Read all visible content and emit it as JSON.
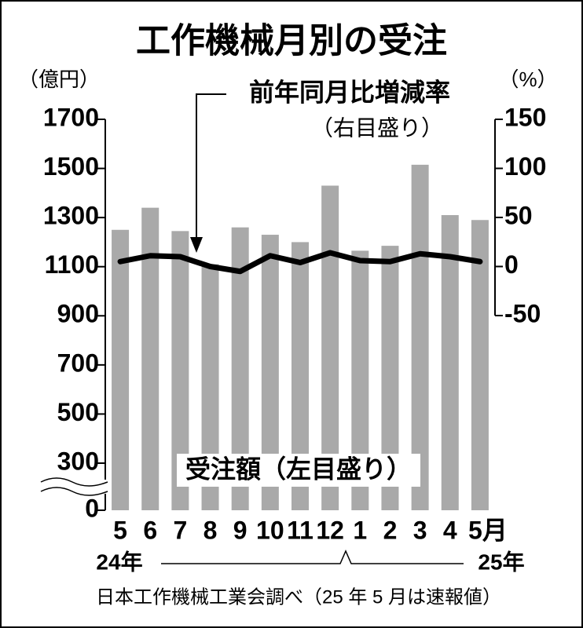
{
  "chart_data": {
    "type": "bar",
    "title": "工作機械月別の受注",
    "y_unit": "（億円）",
    "y2_unit": "（%）",
    "categories": [
      "5",
      "6",
      "7",
      "8",
      "9",
      "10",
      "11",
      "12",
      "1",
      "2",
      "3",
      "4",
      "5月"
    ],
    "x_groups": [
      "24年",
      "25年"
    ],
    "series": [
      {
        "name": "受注額（左目盛り）",
        "type": "bar",
        "color": "#a9a9a9",
        "values": [
          1250,
          1340,
          1245,
          1110,
          1260,
          1230,
          1200,
          1430,
          1165,
          1185,
          1515,
          1310,
          1290
        ]
      },
      {
        "name": "前年同月比増減率",
        "type": "line",
        "axis": "y2",
        "color": "#000000",
        "values": [
          5,
          11,
          10,
          0,
          -5,
          11,
          4,
          14,
          6,
          5,
          13,
          10,
          5
        ]
      }
    ],
    "annotations": [
      "（右目盛り）"
    ],
    "ylim": [
      0,
      1700
    ],
    "yticks": [
      0,
      300,
      500,
      700,
      900,
      1100,
      1300,
      1500,
      1700
    ],
    "y_axis_break": true,
    "y2lim": [
      -50,
      150
    ],
    "y2ticks": [
      150,
      100,
      50,
      0,
      -50
    ],
    "source": "日本工作機械工業会調べ（25 年 5 月は速報値）"
  }
}
